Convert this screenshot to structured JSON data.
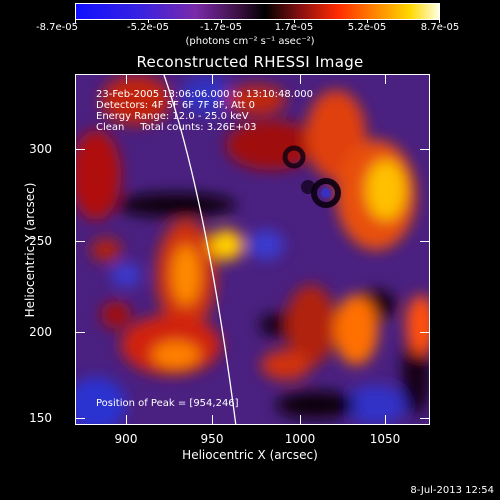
{
  "colorbar": {
    "ticks": [
      "-8.7e-05",
      "-5.2e-05",
      "-1.7e-05",
      "1.7e-05",
      "5.2e-05",
      "8.7e-05"
    ],
    "units": "(photons cm⁻² s⁻¹ asec⁻²)"
  },
  "title": "Reconstructed RHESSI Image",
  "info": {
    "line1": "23-Feb-2005 13:06:06.000 to 13:10:48.000",
    "line2": "Detectors: 4F 5F 6F 7F 8F, Att 0",
    "line3": "Energy Range: 12.0 - 25.0 keV",
    "line4": "Clean     Total counts: 3.26E+03",
    "peak": "Position of Peak = [954,246]"
  },
  "axes": {
    "xlabel": "Heliocentric X (arcsec)",
    "ylabel": "Heliocentric Y (arcsec)",
    "xticks": [
      "900",
      "950",
      "1000",
      "1050"
    ],
    "yticks": [
      "300",
      "250",
      "200",
      "150"
    ]
  },
  "footer": {
    "date": "8-Jul-2013 12:54"
  },
  "colors": {
    "background": "#000000",
    "limb": "#ffffff"
  }
}
